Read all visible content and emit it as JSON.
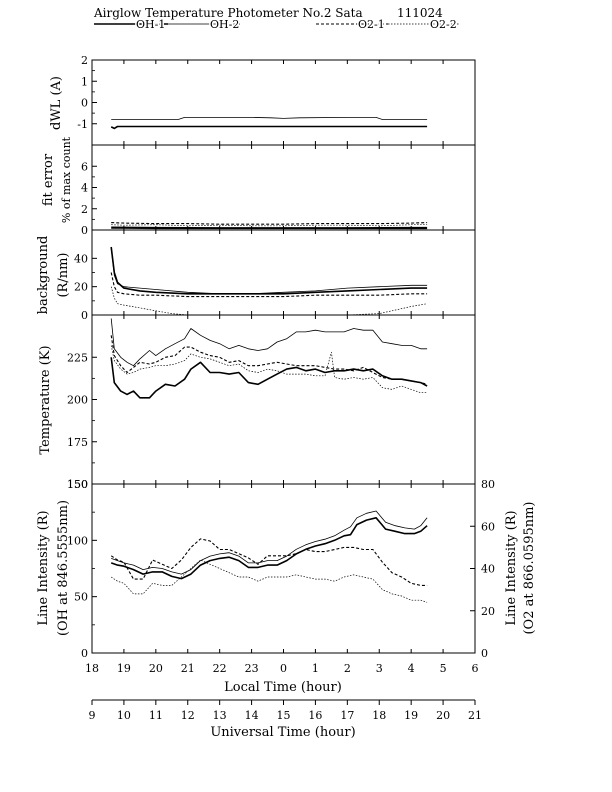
{
  "header": {
    "title": "Airglow Temperature Photometer No.2  Sata",
    "date": "111024"
  },
  "legend": [
    "OH-1",
    "OH-2",
    "O2-1",
    "O2-2"
  ],
  "colors": {
    "line": "#000000",
    "background": "#ffffff"
  },
  "chart_data": [
    {
      "type": "line",
      "panel": "dwl",
      "ylabel": "dWL (A)",
      "ylim": [
        -2,
        2
      ],
      "yticks": [
        -1,
        0,
        1,
        2
      ],
      "series": [
        {
          "name": "OH-1",
          "x": [
            18.6,
            18.7,
            18.8,
            19.0,
            20.0,
            22.0,
            24.0,
            26.0,
            28.0,
            28.5
          ],
          "y": [
            -1.15,
            -1.22,
            -1.13,
            -1.13,
            -1.13,
            -1.13,
            -1.13,
            -1.13,
            -1.13,
            -1.13
          ]
        },
        {
          "name": "OH-2",
          "x": [
            18.6,
            19.5,
            20.7,
            20.9,
            22.0,
            23.0,
            23.6,
            24.0,
            24.5,
            26.0,
            26.9,
            27.1,
            28.0,
            28.4,
            28.5
          ],
          "y": [
            -0.8,
            -0.8,
            -0.8,
            -0.7,
            -0.7,
            -0.7,
            -0.72,
            -0.75,
            -0.72,
            -0.7,
            -0.7,
            -0.8,
            -0.8,
            -0.8,
            -0.8
          ]
        }
      ]
    },
    {
      "type": "line",
      "panel": "fit_error",
      "ylabel": "fit error",
      "ylabel2": "% of max count",
      "ylim": [
        0,
        8
      ],
      "yticks": [
        0,
        2,
        4,
        6
      ],
      "series": [
        {
          "name": "OH-1",
          "x": [
            18.6,
            20,
            22,
            24,
            26,
            28,
            28.5
          ],
          "y": [
            0.25,
            0.22,
            0.2,
            0.2,
            0.2,
            0.22,
            0.22
          ]
        },
        {
          "name": "OH-2",
          "x": [
            18.6,
            20,
            22,
            24,
            26,
            28,
            28.5
          ],
          "y": [
            0.15,
            0.12,
            0.12,
            0.12,
            0.12,
            0.12,
            0.12
          ]
        },
        {
          "name": "O2-1",
          "x": [
            18.6,
            19,
            20,
            21,
            22,
            23,
            24,
            25,
            26,
            27,
            28,
            28.5
          ],
          "y": [
            0.7,
            0.65,
            0.6,
            0.6,
            0.55,
            0.55,
            0.55,
            0.6,
            0.6,
            0.6,
            0.65,
            0.7
          ]
        },
        {
          "name": "O2-2",
          "x": [
            18.6,
            19,
            20,
            21,
            22,
            23,
            24,
            25,
            26,
            27,
            28,
            28.5
          ],
          "y": [
            0.5,
            0.45,
            0.5,
            0.4,
            0.45,
            0.4,
            0.4,
            0.45,
            0.45,
            0.4,
            0.5,
            0.5
          ]
        }
      ]
    },
    {
      "type": "line",
      "panel": "background",
      "ylabel": "background",
      "ylabel2": "(R/nm)",
      "ylim": [
        0,
        60
      ],
      "yticks": [
        0,
        20,
        40
      ],
      "series": [
        {
          "name": "OH-1",
          "x": [
            18.6,
            18.7,
            18.8,
            19.0,
            19.5,
            20.0,
            21.0,
            22.0,
            23.0,
            24.0,
            25.0,
            26.0,
            27.0,
            28.0,
            28.5
          ],
          "y": [
            48,
            30,
            23,
            19,
            17,
            16,
            15,
            15,
            15,
            15,
            16,
            17,
            18,
            19,
            19
          ]
        },
        {
          "name": "OH-2",
          "x": [
            18.6,
            18.7,
            18.8,
            19.0,
            19.5,
            20.0,
            21.0,
            22.0,
            23.0,
            24.0,
            25.0,
            26.0,
            27.0,
            28.0,
            28.5
          ],
          "y": [
            47,
            28,
            22,
            20,
            19,
            18,
            16,
            15,
            15,
            16,
            17,
            19,
            20,
            21,
            21
          ]
        },
        {
          "name": "O2-1",
          "x": [
            18.6,
            18.7,
            18.8,
            19.0,
            19.5,
            20.0,
            21.0,
            22.0,
            23.0,
            24.0,
            25.0,
            26.0,
            27.0,
            28.0,
            28.5
          ],
          "y": [
            30,
            20,
            16,
            15,
            14,
            14,
            13,
            13,
            13,
            13,
            14,
            14,
            14,
            15,
            15
          ]
        },
        {
          "name": "O2-2",
          "x": [
            18.6,
            18.7,
            18.8,
            19.0,
            19.5,
            20.0,
            20.5,
            21.0,
            22.0,
            23.0,
            24.0,
            25.0,
            26.0,
            27.0,
            28.0,
            28.5
          ],
          "y": [
            20,
            12,
            8,
            7,
            5,
            3,
            1,
            0,
            0,
            0,
            0,
            0,
            0,
            1,
            6,
            8
          ]
        }
      ]
    },
    {
      "type": "line",
      "panel": "temperature",
      "ylabel": "Temperature (K)",
      "ylim": [
        150,
        250
      ],
      "yticks": [
        150,
        175,
        200,
        225
      ],
      "series": [
        {
          "name": "OH-1",
          "x": [
            18.6,
            18.7,
            18.9,
            19.1,
            19.3,
            19.5,
            19.8,
            20.0,
            20.3,
            20.6,
            20.9,
            21.1,
            21.4,
            21.7,
            22.0,
            22.3,
            22.6,
            22.9,
            23.2,
            23.5,
            23.8,
            24.1,
            24.4,
            24.7,
            25.0,
            25.3,
            25.6,
            25.9,
            26.2,
            26.5,
            26.8,
            27.1,
            27.4,
            27.7,
            28.0,
            28.3,
            28.5
          ],
          "y": [
            225,
            210,
            205,
            203,
            205,
            201,
            201,
            205,
            209,
            208,
            212,
            218,
            222,
            216,
            216,
            215,
            216,
            210,
            209,
            212,
            215,
            218,
            219,
            217,
            218,
            216,
            217,
            217,
            218,
            217,
            218,
            214,
            212,
            212,
            211,
            210,
            208
          ]
        },
        {
          "name": "OH-2",
          "x": [
            18.6,
            18.7,
            18.9,
            19.1,
            19.3,
            19.5,
            19.8,
            20.0,
            20.3,
            20.6,
            20.9,
            21.1,
            21.4,
            21.7,
            22.0,
            22.3,
            22.6,
            22.9,
            23.2,
            23.5,
            23.8,
            24.1,
            24.4,
            24.7,
            25.0,
            25.3,
            25.6,
            25.9,
            26.2,
            26.5,
            26.8,
            27.1,
            27.4,
            27.7,
            28.0,
            28.3,
            28.5
          ],
          "y": [
            248,
            230,
            225,
            222,
            220,
            224,
            229,
            226,
            230,
            233,
            236,
            242,
            238,
            235,
            233,
            230,
            232,
            230,
            229,
            230,
            234,
            236,
            240,
            240,
            241,
            240,
            240,
            240,
            242,
            241,
            241,
            234,
            233,
            232,
            232,
            230,
            230
          ]
        },
        {
          "name": "O2-1",
          "x": [
            18.6,
            18.7,
            18.9,
            19.1,
            19.3,
            19.5,
            19.8,
            20.0,
            20.3,
            20.6,
            20.9,
            21.1,
            21.4,
            21.7,
            22.0,
            22.3,
            22.6,
            22.9,
            23.2,
            23.5,
            23.8,
            24.1,
            24.4,
            24.7,
            25.0,
            25.3,
            25.6,
            25.9,
            26.2,
            26.5,
            26.8,
            27.1,
            27.4,
            27.7,
            28.0,
            28.3,
            28.5
          ],
          "y": [
            238,
            226,
            220,
            216,
            219,
            222,
            221,
            222,
            225,
            226,
            231,
            231,
            228,
            226,
            225,
            222,
            223,
            220,
            220,
            221,
            222,
            221,
            220,
            220,
            220,
            219,
            218,
            218,
            217,
            219,
            216,
            213,
            212,
            212,
            211,
            210,
            209
          ]
        },
        {
          "name": "O2-2",
          "x": [
            18.6,
            18.7,
            18.9,
            19.1,
            19.3,
            19.5,
            19.8,
            20.0,
            20.3,
            20.6,
            20.9,
            21.1,
            21.4,
            21.7,
            22.0,
            22.3,
            22.6,
            22.9,
            23.2,
            23.5,
            23.8,
            24.1,
            24.4,
            24.7,
            25.0,
            25.3,
            25.5,
            25.6,
            25.9,
            26.2,
            26.5,
            26.8,
            27.1,
            27.4,
            27.7,
            28.0,
            28.3,
            28.5
          ],
          "y": [
            232,
            223,
            218,
            215,
            216,
            218,
            219,
            220,
            220,
            221,
            223,
            227,
            225,
            224,
            222,
            220,
            221,
            217,
            216,
            218,
            217,
            215,
            215,
            215,
            214,
            214,
            228,
            213,
            212,
            213,
            212,
            213,
            207,
            206,
            208,
            206,
            204,
            204
          ]
        }
      ]
    },
    {
      "type": "line",
      "panel": "intensity",
      "ylabel": "Line Intensity (R)",
      "ylabel2": "(OH at 846.5555nm)",
      "ylim": [
        0,
        150
      ],
      "yticks": [
        0,
        50,
        100,
        150
      ],
      "ylabel_right": "Line Intensity (R)",
      "ylabel2_right": "(O2 at 866.0595nm)",
      "ylim_right": [
        0,
        80
      ],
      "yticks_right": [
        0,
        20,
        40,
        60,
        80
      ],
      "xlabel": "Local Time (hour)",
      "xlim": [
        18,
        30
      ],
      "xticks": [
        18,
        19,
        20,
        21,
        22,
        23,
        24,
        25,
        26,
        27,
        28,
        29,
        30
      ],
      "xticklabels": [
        "18",
        "19",
        "20",
        "21",
        "22",
        "23",
        "0",
        "1",
        "2",
        "3",
        "4",
        "5",
        "6"
      ],
      "xlabel_secondary": "Universal Time (hour)",
      "xticklabels_secondary": [
        "9",
        "10",
        "11",
        "12",
        "13",
        "14",
        "15",
        "16",
        "17",
        "18",
        "19",
        "20",
        "21"
      ],
      "series": [
        {
          "name": "OH-1",
          "axis": "left",
          "x": [
            18.6,
            18.8,
            19.0,
            19.3,
            19.6,
            19.9,
            20.2,
            20.5,
            20.8,
            21.1,
            21.4,
            21.7,
            22.0,
            22.3,
            22.6,
            22.9,
            23.2,
            23.5,
            23.8,
            24.1,
            24.4,
            24.7,
            25.0,
            25.3,
            25.6,
            25.9,
            26.1,
            26.3,
            26.6,
            26.9,
            27.2,
            27.5,
            27.8,
            28.1,
            28.3,
            28.5
          ],
          "y": [
            80,
            78,
            77,
            74,
            70,
            72,
            72,
            68,
            66,
            70,
            78,
            82,
            84,
            85,
            82,
            76,
            76,
            78,
            78,
            82,
            88,
            92,
            95,
            97,
            100,
            104,
            105,
            114,
            118,
            120,
            110,
            108,
            106,
            106,
            108,
            113
          ]
        },
        {
          "name": "OH-2",
          "axis": "left",
          "x": [
            18.6,
            18.8,
            19.0,
            19.3,
            19.6,
            19.9,
            20.2,
            20.5,
            20.8,
            21.1,
            21.4,
            21.7,
            22.0,
            22.3,
            22.6,
            22.9,
            23.2,
            23.5,
            23.8,
            24.1,
            24.4,
            24.7,
            25.0,
            25.3,
            25.6,
            25.9,
            26.1,
            26.3,
            26.6,
            26.9,
            27.2,
            27.5,
            27.8,
            28.1,
            28.3,
            28.5
          ],
          "y": [
            84,
            82,
            80,
            78,
            74,
            76,
            75,
            72,
            70,
            74,
            82,
            86,
            88,
            89,
            86,
            80,
            80,
            82,
            82,
            86,
            92,
            96,
            99,
            101,
            104,
            109,
            112,
            120,
            124,
            126,
            116,
            113,
            111,
            110,
            113,
            120
          ]
        },
        {
          "name": "O2-1",
          "axis": "right",
          "x": [
            18.6,
            18.8,
            19.0,
            19.3,
            19.6,
            19.9,
            20.2,
            20.5,
            20.8,
            21.1,
            21.4,
            21.7,
            22.0,
            22.3,
            22.6,
            22.9,
            23.2,
            23.5,
            23.8,
            24.1,
            24.4,
            24.7,
            25.0,
            25.3,
            25.6,
            25.9,
            26.2,
            26.5,
            26.8,
            27.1,
            27.4,
            27.7,
            28.0,
            28.3,
            28.5
          ],
          "y": [
            46,
            44,
            43,
            35,
            35,
            44,
            42,
            40,
            44,
            50,
            54,
            53,
            49,
            49,
            47,
            45,
            42,
            46,
            46,
            46,
            47,
            49,
            48,
            48,
            49,
            50,
            50,
            49,
            49,
            43,
            38,
            36,
            33,
            32,
            32
          ]
        },
        {
          "name": "O2-2",
          "axis": "right",
          "x": [
            18.6,
            18.8,
            19.0,
            19.3,
            19.6,
            19.9,
            20.2,
            20.5,
            20.8,
            21.1,
            21.4,
            21.7,
            22.0,
            22.3,
            22.6,
            22.9,
            23.2,
            23.5,
            23.8,
            24.1,
            24.4,
            24.7,
            25.0,
            25.3,
            25.6,
            25.9,
            26.2,
            26.5,
            26.8,
            27.1,
            27.4,
            27.7,
            28.0,
            28.3,
            28.5
          ],
          "y": [
            36,
            34,
            33,
            28,
            28,
            33,
            32,
            32,
            36,
            40,
            44,
            42,
            40,
            38,
            36,
            36,
            34,
            36,
            36,
            36,
            37,
            36,
            35,
            35,
            34,
            36,
            37,
            36,
            35,
            30,
            28,
            27,
            25,
            25,
            24
          ]
        }
      ]
    }
  ]
}
